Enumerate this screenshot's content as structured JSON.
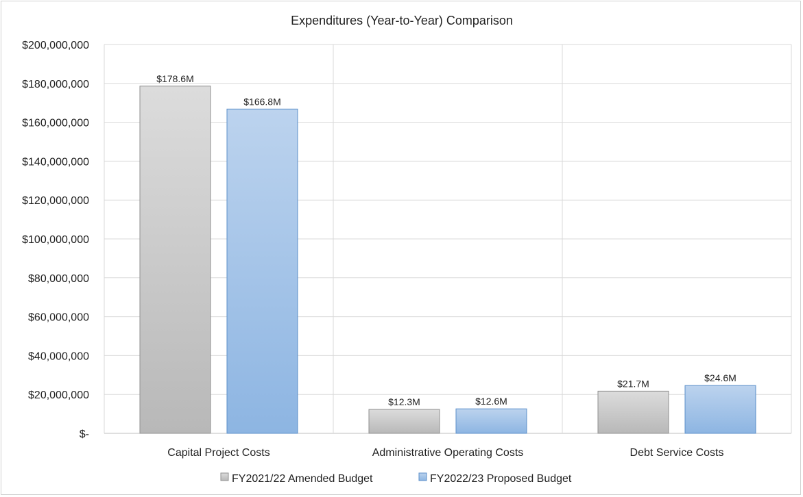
{
  "chart_data": {
    "type": "bar",
    "title": "Expenditures  (Year-to-Year)  Comparison",
    "xlabel": "",
    "ylabel": "",
    "categories": [
      "Capital Project Costs",
      "Administrative Operating Costs",
      "Debt Service Costs"
    ],
    "series": [
      {
        "name": "FY2021/22 Amended Budget",
        "values": [
          178600000,
          12300000,
          21700000
        ],
        "labels": [
          "$178.6M",
          "$12.3M",
          "$21.7M"
        ],
        "color": "#c8c8c8"
      },
      {
        "name": "FY2022/23 Proposed Budget",
        "values": [
          166800000,
          12600000,
          24600000
        ],
        "labels": [
          "$166.8M",
          "$12.6M",
          "$24.6M"
        ],
        "color": "#a3c2e8"
      }
    ],
    "ylim": [
      0,
      200000000
    ],
    "y_ticks": [
      0,
      20000000,
      40000000,
      60000000,
      80000000,
      100000000,
      120000000,
      140000000,
      160000000,
      180000000,
      200000000
    ],
    "y_tick_labels": [
      "$-",
      "$20,000,000",
      "$40,000,000",
      "$60,000,000",
      "$80,000,000",
      "$100,000,000",
      "$120,000,000",
      "$140,000,000",
      "$160,000,000",
      "$180,000,000",
      "$200,000,000"
    ],
    "grid": true,
    "legend_position": "bottom"
  }
}
